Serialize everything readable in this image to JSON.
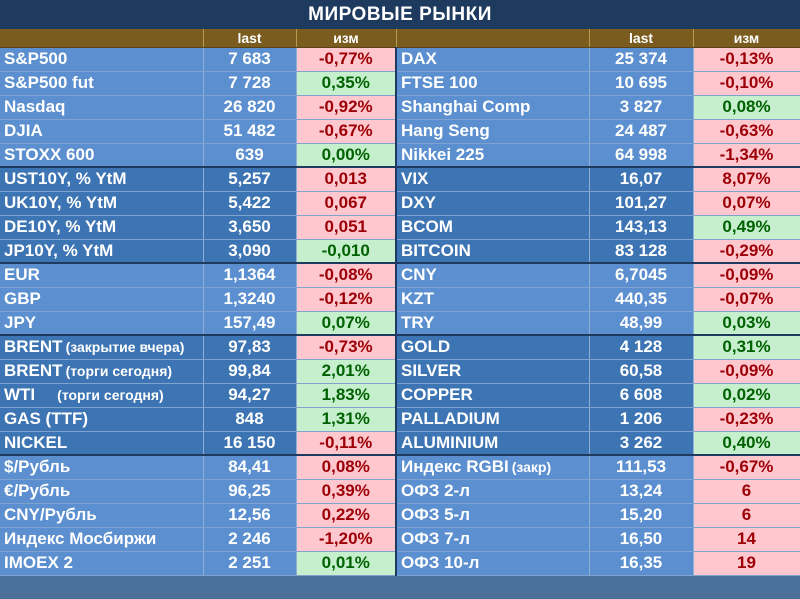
{
  "title": "МИРОВЫЕ РЫНКИ",
  "headers": {
    "last": "last",
    "change": "изм"
  },
  "rows": [
    {
      "group": 1,
      "left": {
        "name": "S&P500",
        "last": "7 683",
        "chg": "-0,77%",
        "dir": "neg"
      },
      "right": {
        "name": "DAX",
        "last": "25 374",
        "chg": "-0,13%",
        "dir": "neg"
      }
    },
    {
      "group": 1,
      "left": {
        "name": "S&P500 fut",
        "last": "7 728",
        "chg": "0,35%",
        "dir": "pos"
      },
      "right": {
        "name": "FTSE 100",
        "last": "10 695",
        "chg": "-0,10%",
        "dir": "neg"
      }
    },
    {
      "group": 1,
      "left": {
        "name": "Nasdaq",
        "last": "26 820",
        "chg": "-0,92%",
        "dir": "neg"
      },
      "right": {
        "name": "Shanghai Comp",
        "last": "3 827",
        "chg": "0,08%",
        "dir": "pos"
      }
    },
    {
      "group": 1,
      "left": {
        "name": "DJIA",
        "last": "51 482",
        "chg": "-0,67%",
        "dir": "neg"
      },
      "right": {
        "name": "Hang Seng",
        "last": "24 487",
        "chg": "-0,63%",
        "dir": "neg"
      }
    },
    {
      "group": 1,
      "left": {
        "name": "STOXX 600",
        "last": "639",
        "chg": "0,00%",
        "dir": "pos"
      },
      "right": {
        "name": "Nikkei 225",
        "last": "64 998",
        "chg": "-1,34%",
        "dir": "neg"
      }
    },
    {
      "group": 2,
      "sep": true,
      "left": {
        "name": "UST10Y, % YtM",
        "last": "5,257",
        "chg": "0,013",
        "dir": "neg"
      },
      "right": {
        "name": "VIX",
        "last": "16,07",
        "chg": "8,07%",
        "dir": "neg"
      }
    },
    {
      "group": 2,
      "left": {
        "name": "UK10Y, % YtM",
        "last": "5,422",
        "chg": "0,067",
        "dir": "neg"
      },
      "right": {
        "name": "DXY",
        "last": "101,27",
        "chg": "0,07%",
        "dir": "neg"
      }
    },
    {
      "group": 2,
      "left": {
        "name": "DE10Y, % YtM",
        "last": "3,650",
        "chg": "0,051",
        "dir": "neg"
      },
      "right": {
        "name": "BCOM",
        "last": "143,13",
        "chg": "0,49%",
        "dir": "pos"
      }
    },
    {
      "group": 2,
      "left": {
        "name": "JP10Y, % YtM",
        "last": "3,090",
        "chg": "-0,010",
        "dir": "pos"
      },
      "right": {
        "name": "BITCOIN",
        "last": "83 128",
        "chg": "-0,29%",
        "dir": "neg"
      }
    },
    {
      "group": 1,
      "sep": true,
      "left": {
        "name": "EUR",
        "last": "1,1364",
        "chg": "-0,08%",
        "dir": "neg"
      },
      "right": {
        "name": "CNY",
        "last": "6,7045",
        "chg": "-0,09%",
        "dir": "neg"
      }
    },
    {
      "group": 1,
      "left": {
        "name": "GBP",
        "last": "1,3240",
        "chg": "-0,12%",
        "dir": "neg"
      },
      "right": {
        "name": "KZT",
        "last": "440,35",
        "chg": "-0,07%",
        "dir": "neg"
      }
    },
    {
      "group": 1,
      "left": {
        "name": "JPY",
        "last": "157,49",
        "chg": "0,07%",
        "dir": "pos"
      },
      "right": {
        "name": "TRY",
        "last": "48,99",
        "chg": "0,03%",
        "dir": "pos"
      }
    },
    {
      "group": 2,
      "sep": true,
      "left": {
        "name": "BRENT",
        "note": "(закрытие вчера)",
        "last": "97,83",
        "chg": "-0,73%",
        "dir": "neg"
      },
      "right": {
        "name": "GOLD",
        "last": "4 128",
        "chg": "0,31%",
        "dir": "pos"
      }
    },
    {
      "group": 2,
      "left": {
        "name": "BRENT",
        "note": "(торги сегодня)",
        "last": "99,84",
        "chg": "2,01%",
        "dir": "pos"
      },
      "right": {
        "name": "SILVER",
        "last": "60,58",
        "chg": "-0,09%",
        "dir": "neg"
      }
    },
    {
      "group": 2,
      "left": {
        "name": "WTI",
        "note": "(торги сегодня)",
        "last": "94,27",
        "chg": "1,83%",
        "dir": "pos"
      },
      "right": {
        "name": "COPPER",
        "last": "6 608",
        "chg": "0,02%",
        "dir": "pos"
      }
    },
    {
      "group": 2,
      "left": {
        "name": "GAS (TTF)",
        "last": "848",
        "chg": "1,31%",
        "dir": "pos"
      },
      "right": {
        "name": "PALLADIUM",
        "last": "1 206",
        "chg": "-0,23%",
        "dir": "neg"
      }
    },
    {
      "group": 2,
      "left": {
        "name": "NICKEL",
        "last": "16 150",
        "chg": "-0,11%",
        "dir": "neg"
      },
      "right": {
        "name": "ALUMINIUM",
        "last": "3 262",
        "chg": "0,40%",
        "dir": "pos"
      }
    },
    {
      "group": 1,
      "sep": true,
      "left": {
        "name": "$/Рубль",
        "last": "84,41",
        "chg": "0,08%",
        "dir": "neg"
      },
      "right": {
        "name": "Индекс RGBI",
        "note": "(закр)",
        "last": "111,53",
        "chg": "-0,67%",
        "dir": "neg"
      }
    },
    {
      "group": 1,
      "left": {
        "name": "€/Рубль",
        "last": "96,25",
        "chg": "0,39%",
        "dir": "neg"
      },
      "right": {
        "name": "ОФЗ 2-л",
        "last": "13,24",
        "chg": "6",
        "dir": "neg"
      }
    },
    {
      "group": 1,
      "left": {
        "name": "CNY/Рубль",
        "last": "12,56",
        "chg": "0,22%",
        "dir": "neg"
      },
      "right": {
        "name": "ОФЗ 5-л",
        "last": "15,20",
        "chg": "6",
        "dir": "neg"
      }
    },
    {
      "group": 1,
      "left": {
        "name": "Индекс Мосбиржи",
        "last": "2 246",
        "chg": "-1,20%",
        "dir": "neg"
      },
      "right": {
        "name": "ОФЗ 7-л",
        "last": "16,50",
        "chg": "14",
        "dir": "neg"
      }
    },
    {
      "group": 1,
      "left": {
        "name": "IMOEX 2",
        "last": "2 251",
        "chg": "0,01%",
        "dir": "pos"
      },
      "right": {
        "name": "ОФЗ 10-л",
        "last": "16,35",
        "chg": "19",
        "dir": "neg"
      }
    }
  ]
}
